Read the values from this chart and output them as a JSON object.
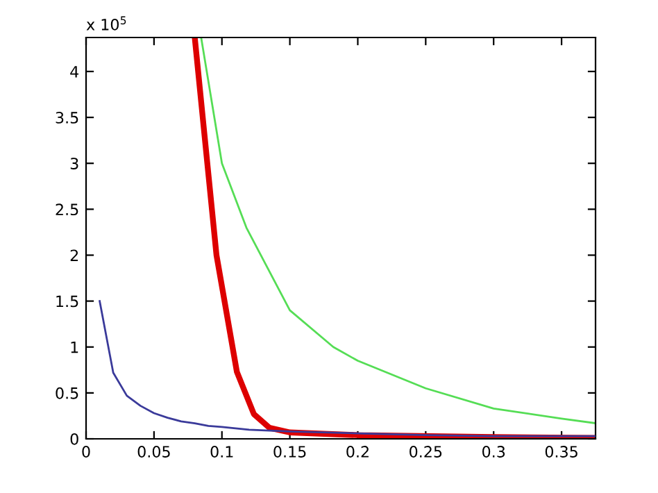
{
  "chart_data": {
    "type": "line",
    "annotations": [
      "x 10$^{5}$"
    ],
    "xlim": [
      0,
      0.375
    ],
    "ylim": [
      0,
      4.37
    ],
    "xticks": [
      0,
      0.05,
      0.1,
      0.15,
      0.2,
      0.25,
      0.3,
      0.35
    ],
    "yticks": [
      0,
      0.5,
      1,
      1.5,
      2,
      2.5,
      3,
      3.5,
      4
    ],
    "grid": false,
    "marker": "none",
    "line_style": "solid",
    "series": [
      {
        "color": "#3a3a9a",
        "x": [
          0.01,
          0.02,
          0.03,
          0.04,
          0.05,
          0.06,
          0.07,
          0.08,
          0.09,
          0.1,
          0.12,
          0.15,
          0.2,
          0.25,
          0.3,
          0.375
        ],
        "values": [
          1.5,
          0.72,
          0.47,
          0.36,
          0.28,
          0.23,
          0.19,
          0.17,
          0.14,
          0.13,
          0.1,
          0.08,
          0.06,
          0.04,
          0.03,
          0.03
        ]
      },
      {
        "color": "#dd0000",
        "x": [
          0.08,
          0.096,
          0.111,
          0.1235,
          0.135,
          0.15,
          0.2,
          0.3,
          0.375
        ],
        "values": [
          4.37,
          2.0,
          0.73,
          0.27,
          0.12,
          0.07,
          0.04,
          0.02,
          0.01
        ]
      },
      {
        "color": "#55dd55",
        "x": [
          0.0847,
          0.1,
          0.118,
          0.15,
          0.182,
          0.2,
          0.25,
          0.3,
          0.35,
          0.375
        ],
        "values": [
          4.37,
          3.0,
          2.3,
          1.4,
          1.0,
          0.85,
          0.55,
          0.33,
          0.22,
          0.17
        ]
      }
    ]
  }
}
